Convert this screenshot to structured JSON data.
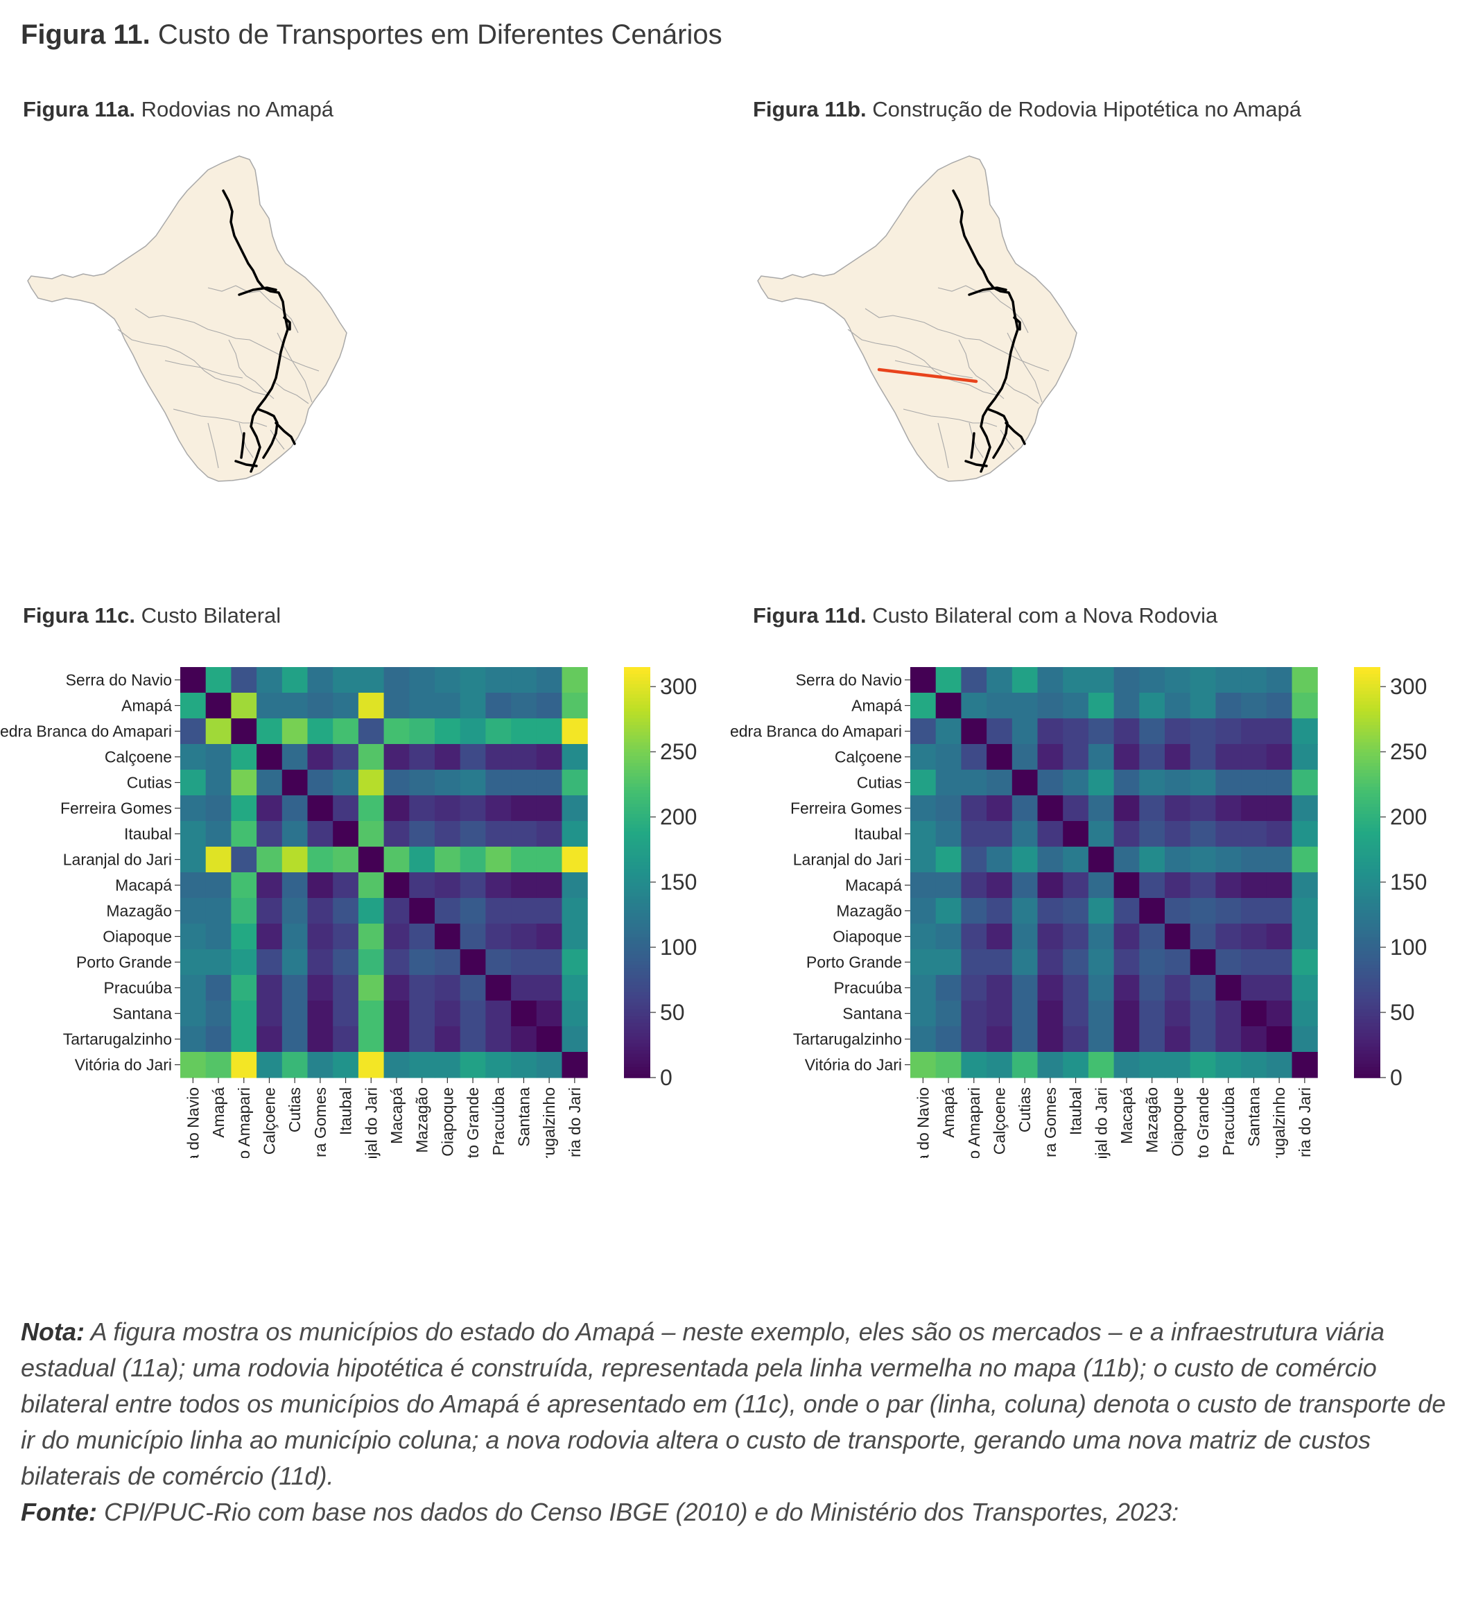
{
  "figure": {
    "title_bold": "Figura 11.",
    "title_text": "Custo de Transportes em Diferentes Cenários"
  },
  "panels": {
    "a": {
      "bold": "Figura 11a.",
      "text": "Rodovias no Amapá"
    },
    "b": {
      "bold": "Figura 11b.",
      "text": "Construção de Rodovia Hipotética no Amapá"
    },
    "c": {
      "bold": "Figura 11c.",
      "text": "Custo Bilateral"
    },
    "d": {
      "bold": "Figura 11d.",
      "text": "Custo Bilateral com a Nova Rodovia"
    }
  },
  "colors": {
    "map_fill": "#f8efdf",
    "map_border": "#a8a8a8",
    "road": "#000000",
    "new_road": "#e8431c"
  },
  "note": {
    "nota_label": "Nota:",
    "nota_text": "A figura mostra os municípios do estado do Amapá – neste exemplo, eles são os mercados – e a infraestrutura viária estadual (11a); uma rodovia hipotética é construída, representada pela linha vermelha no mapa (11b); o custo de comércio bilateral entre todos os municípios do Amapá é apresentado em (11c), onde o par (linha, coluna) denota o custo de transporte de ir do município linha ao município coluna; a nova rodovia altera o custo de transporte, gerando uma nova matriz de custos bilaterais de comércio (11d).",
    "fonte_label": "Fonte:",
    "fonte_text": "CPI/PUC-Rio com base nos dados do Censo IBGE (2010) e do Ministério dos Transportes, 2023:"
  },
  "chart_data": [
    {
      "type": "heatmap",
      "panel": "11c",
      "colormap": "viridis",
      "vmin": 0,
      "vmax": 315,
      "colorbar_ticks": [
        0,
        50,
        100,
        150,
        200,
        250,
        300
      ],
      "labels": [
        "Serra do Navio",
        "Amapá",
        "Pedra Branca do Amapari",
        "Calçoene",
        "Cutias",
        "Ferreira Gomes",
        "Itaubal",
        "Laranjal do Jari",
        "Macapá",
        "Mazagão",
        "Oiapoque",
        "Porto Grande",
        "Pracuúba",
        "Santana",
        "Tartarugalzinho",
        "Vitória do Jari"
      ],
      "values": [
        [
          0,
          190,
          80,
          130,
          180,
          120,
          140,
          140,
          110,
          120,
          130,
          140,
          130,
          130,
          120,
          240
        ],
        [
          190,
          0,
          270,
          120,
          120,
          110,
          120,
          300,
          110,
          120,
          120,
          140,
          100,
          110,
          100,
          230
        ],
        [
          80,
          270,
          0,
          190,
          250,
          190,
          220,
          80,
          220,
          210,
          190,
          170,
          200,
          190,
          190,
          310
        ],
        [
          130,
          120,
          190,
          0,
          110,
          30,
          60,
          230,
          30,
          50,
          30,
          70,
          40,
          40,
          30,
          150
        ],
        [
          180,
          120,
          250,
          110,
          0,
          100,
          120,
          280,
          100,
          110,
          120,
          130,
          100,
          100,
          100,
          210
        ],
        [
          120,
          110,
          190,
          30,
          100,
          0,
          50,
          220,
          20,
          50,
          40,
          50,
          30,
          20,
          20,
          140
        ],
        [
          140,
          120,
          220,
          60,
          120,
          50,
          0,
          230,
          50,
          80,
          60,
          80,
          60,
          60,
          50,
          160
        ],
        [
          140,
          300,
          80,
          230,
          280,
          220,
          230,
          0,
          230,
          180,
          230,
          210,
          240,
          220,
          220,
          310
        ],
        [
          110,
          110,
          220,
          30,
          100,
          20,
          50,
          230,
          0,
          50,
          40,
          60,
          30,
          20,
          20,
          140
        ],
        [
          120,
          120,
          210,
          50,
          110,
          50,
          80,
          180,
          50,
          0,
          70,
          90,
          60,
          60,
          60,
          150
        ],
        [
          130,
          120,
          190,
          30,
          120,
          40,
          60,
          230,
          40,
          70,
          0,
          80,
          50,
          40,
          30,
          150
        ],
        [
          140,
          140,
          170,
          70,
          130,
          50,
          80,
          210,
          60,
          90,
          80,
          0,
          80,
          70,
          70,
          180
        ],
        [
          130,
          100,
          200,
          40,
          100,
          30,
          60,
          240,
          30,
          60,
          50,
          80,
          0,
          40,
          40,
          160
        ],
        [
          130,
          110,
          190,
          40,
          100,
          20,
          60,
          220,
          20,
          60,
          40,
          70,
          40,
          0,
          20,
          150
        ],
        [
          120,
          100,
          190,
          30,
          100,
          20,
          50,
          220,
          20,
          60,
          30,
          70,
          40,
          20,
          0,
          140
        ],
        [
          240,
          230,
          310,
          150,
          210,
          140,
          160,
          310,
          140,
          150,
          150,
          180,
          160,
          150,
          140,
          0
        ]
      ]
    },
    {
      "type": "heatmap",
      "panel": "11d",
      "colormap": "viridis",
      "vmin": 0,
      "vmax": 315,
      "colorbar_ticks": [
        0,
        50,
        100,
        150,
        200,
        250,
        300
      ],
      "labels": [
        "Serra do Navio",
        "Amapá",
        "Pedra Branca do Amapari",
        "Calçoene",
        "Cutias",
        "Ferreira Gomes",
        "Itaubal",
        "Laranjal do Jari",
        "Macapá",
        "Mazagão",
        "Oiapoque",
        "Porto Grande",
        "Pracuúba",
        "Santana",
        "Tartarugalzinho",
        "Vitória do Jari"
      ],
      "values": [
        [
          0,
          190,
          80,
          130,
          180,
          120,
          140,
          140,
          110,
          120,
          130,
          140,
          130,
          130,
          120,
          240
        ],
        [
          190,
          0,
          130,
          120,
          120,
          110,
          120,
          180,
          110,
          150,
          120,
          140,
          100,
          110,
          100,
          230
        ],
        [
          80,
          130,
          0,
          70,
          120,
          50,
          60,
          80,
          50,
          90,
          60,
          70,
          60,
          50,
          50,
          160
        ],
        [
          130,
          120,
          70,
          0,
          110,
          30,
          60,
          120,
          30,
          70,
          30,
          70,
          40,
          40,
          30,
          150
        ],
        [
          180,
          120,
          120,
          110,
          0,
          100,
          120,
          160,
          100,
          130,
          120,
          130,
          100,
          100,
          100,
          210
        ],
        [
          120,
          110,
          50,
          30,
          100,
          0,
          50,
          110,
          20,
          70,
          40,
          50,
          30,
          20,
          20,
          140
        ],
        [
          140,
          120,
          60,
          60,
          120,
          50,
          0,
          130,
          50,
          80,
          60,
          80,
          60,
          60,
          50,
          160
        ],
        [
          140,
          180,
          80,
          120,
          160,
          110,
          130,
          0,
          110,
          150,
          120,
          130,
          120,
          110,
          110,
          220
        ],
        [
          110,
          110,
          50,
          30,
          100,
          20,
          50,
          110,
          0,
          70,
          40,
          60,
          30,
          20,
          20,
          140
        ],
        [
          120,
          150,
          90,
          70,
          130,
          70,
          80,
          150,
          70,
          0,
          80,
          90,
          80,
          70,
          70,
          150
        ],
        [
          130,
          120,
          60,
          30,
          120,
          40,
          60,
          120,
          40,
          80,
          0,
          80,
          50,
          40,
          30,
          150
        ],
        [
          140,
          140,
          70,
          70,
          130,
          50,
          80,
          130,
          60,
          90,
          80,
          0,
          80,
          70,
          70,
          180
        ],
        [
          130,
          100,
          60,
          40,
          100,
          30,
          60,
          120,
          30,
          80,
          50,
          80,
          0,
          40,
          40,
          160
        ],
        [
          130,
          110,
          50,
          40,
          100,
          20,
          60,
          110,
          20,
          70,
          40,
          70,
          40,
          0,
          20,
          150
        ],
        [
          120,
          100,
          50,
          30,
          100,
          20,
          50,
          110,
          20,
          70,
          30,
          70,
          40,
          20,
          0,
          140
        ],
        [
          240,
          230,
          160,
          150,
          210,
          140,
          160,
          220,
          140,
          150,
          150,
          180,
          160,
          150,
          140,
          0
        ]
      ]
    }
  ]
}
